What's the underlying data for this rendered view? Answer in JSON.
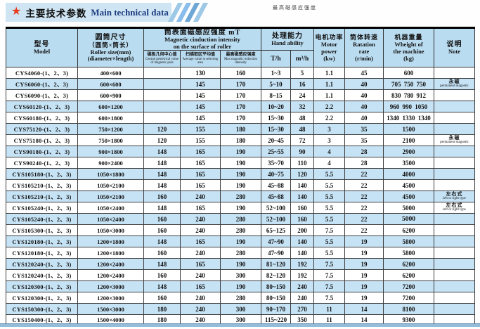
{
  "title": {
    "star": "★",
    "cn": "主要技术参数",
    "en": "Main technical data"
  },
  "top_caption": "最高磁感应强度",
  "colors": {
    "row_alt_blue": "#c6e3f5",
    "header_blue": "#badcf0",
    "title_bar_blue": "#cfe5f3",
    "title_navy": "#1b3a80",
    "star_red": "#e8391d"
  },
  "table": {
    "header": {
      "model": {
        "cn": "型号",
        "en": "Model"
      },
      "size": {
        "cn1": "圆筒尺寸",
        "cn2": "（圆筒×筒长）",
        "en1": "Roller size(mm)",
        "en2": "(diameter×length)"
      },
      "magnetic": {
        "cn": "筒表面磁感应强度 mT",
        "en1": "Magnetic cinduction intensity",
        "en2": "on the surface of roller",
        "subs": [
          {
            "cn": "磁极几何中心值",
            "en": "Central gemetrical value of magnetic pole"
          },
          {
            "cn": "扫描取区平均值",
            "en": "Average value in selecting area"
          },
          {
            "cn": "最高磁感应强度",
            "en": "Max magnetic induction intensity"
          }
        ]
      },
      "hand": {
        "cn": "处理能力",
        "en": "Hand ability",
        "th": "T/h",
        "m3h": "m³/h"
      },
      "motor": {
        "cn": "电机功率",
        "en1": "Motor",
        "en2": "power",
        "unit": "(kw)"
      },
      "rate": {
        "cn": "筒体转速",
        "en1": "Ratation",
        "en2": "rate",
        "unit": "(r/min)"
      },
      "weight": {
        "cn": "机器重量",
        "en1": "Wheight of",
        "en2": "the machine",
        "unit": "(kg)"
      },
      "note": {
        "cn": "说明",
        "en": "Note"
      }
    },
    "rows": [
      {
        "model": "CYS4060-(1、2、3)",
        "size": "400×600",
        "central": "",
        "avg": "130",
        "max": "160",
        "th": "1~3",
        "m3h": "5",
        "motor": "1.1",
        "rate": "45",
        "weight": "600",
        "note_cn": "",
        "note_en": ""
      },
      {
        "model": "CYS6060-(1、2、3)",
        "size": "600×600",
        "central": "",
        "avg": "145",
        "max": "170",
        "th": "5~10",
        "m3h": "16",
        "motor": "1.1",
        "rate": "40",
        "weight": "705 750 750",
        "note_cn": "永磁",
        "note_en": "permanent magnetic"
      },
      {
        "model": "CYS6090-(1、2、3)",
        "size": "600×900",
        "central": "",
        "avg": "145",
        "max": "170",
        "th": "8~15",
        "m3h": "24",
        "motor": "1.1",
        "rate": "40",
        "weight": "830 780 912",
        "note_cn": "",
        "note_en": ""
      },
      {
        "model": "CYS60120-(1、2、3)",
        "size": "600×1200",
        "central": "",
        "avg": "145",
        "max": "170",
        "th": "10~20",
        "m3h": "32",
        "motor": "2.2",
        "rate": "40",
        "weight": "960 990 1050",
        "note_cn": "",
        "note_en": ""
      },
      {
        "model": "CYS60180-(1、2、3)",
        "size": "600×1800",
        "central": "",
        "avg": "145",
        "max": "170",
        "th": "15~30",
        "m3h": "48",
        "motor": "2.2",
        "rate": "40",
        "weight": "1340 1330 1340",
        "note_cn": "",
        "note_en": ""
      },
      {
        "model": "CYS75120-(1、2、3)",
        "size": "750×1200",
        "central": "120",
        "avg": "155",
        "max": "180",
        "th": "15~30",
        "m3h": "48",
        "motor": "3",
        "rate": "35",
        "weight": "1500",
        "note_cn": "",
        "note_en": ""
      },
      {
        "model": "CYS75180-(1、2、3)",
        "size": "750×1800",
        "central": "120",
        "avg": "155",
        "max": "180",
        "th": "20~45",
        "m3h": "72",
        "motor": "3",
        "rate": "35",
        "weight": "2100",
        "note_cn": "永磁",
        "note_en": "permanent magnetic"
      },
      {
        "model": "CYS90180-(1、2、3)",
        "size": "900×1800",
        "central": "148",
        "avg": "165",
        "max": "190",
        "th": "25~55",
        "m3h": "90",
        "motor": "4",
        "rate": "28",
        "weight": "2900",
        "note_cn": "",
        "note_en": ""
      },
      {
        "model": "CYS90240-(1、2、3)",
        "size": "900×2400",
        "central": "148",
        "avg": "165",
        "max": "190",
        "th": "35~70",
        "m3h": "110",
        "motor": "4",
        "rate": "28",
        "weight": "3500",
        "note_cn": "",
        "note_en": ""
      },
      {
        "model": "CYS105180-(1、2、3)",
        "size": "1050×1800",
        "central": "148",
        "avg": "165",
        "max": "190",
        "th": "40~75",
        "m3h": "120",
        "motor": "5.5",
        "rate": "22",
        "weight": "4000",
        "note_cn": "",
        "note_en": ""
      },
      {
        "model": "CYS105210-(1、2、3)",
        "size": "1050×2100",
        "central": "148",
        "avg": "165",
        "max": "190",
        "th": "45~88",
        "m3h": "140",
        "motor": "5.5",
        "rate": "22",
        "weight": "4500",
        "note_cn": "",
        "note_en": ""
      },
      {
        "model": "CYS105210-(1、2、3)",
        "size": "1050×2100",
        "central": "160",
        "avg": "240",
        "max": "280",
        "th": "45~88",
        "m3h": "140",
        "motor": "5.5",
        "rate": "22",
        "weight": "4500",
        "note_cn": "左右式",
        "note_en": "left or right type"
      },
      {
        "model": "CYS105240-(1、2、3)",
        "size": "1050×2400",
        "central": "148",
        "avg": "165",
        "max": "190",
        "th": "52~100",
        "m3h": "160",
        "motor": "5.5",
        "rate": "22",
        "weight": "5000",
        "note_cn": "左右式",
        "note_en": "left or right type"
      },
      {
        "model": "CYS105240-(1、2、3)",
        "size": "1050×2400",
        "central": "160",
        "avg": "240",
        "max": "280",
        "th": "52~100",
        "m3h": "160",
        "motor": "5.5",
        "rate": "22",
        "weight": "5000",
        "weight_bold": true,
        "note_cn": "",
        "note_en": ""
      },
      {
        "model": "CYS105300-(1、2、3)",
        "size": "1050×3000",
        "central": "160",
        "avg": "240",
        "max": "280",
        "th": "65~125",
        "m3h": "200",
        "motor": "7.5",
        "rate": "22",
        "weight": "6200",
        "note_cn": "",
        "note_en": ""
      },
      {
        "model": "CYS120180-(1、2、3)",
        "size": "1200×1800",
        "central": "148",
        "avg": "165",
        "max": "190",
        "th": "47~90",
        "m3h": "140",
        "motor": "5.5",
        "rate": "19",
        "weight": "5800",
        "note_cn": "",
        "note_en": ""
      },
      {
        "model": "CYS120180-(1、2、3)",
        "size": "1200×1800",
        "central": "160",
        "avg": "240",
        "max": "280",
        "th": "47~90",
        "m3h": "140",
        "motor": "5.5",
        "rate": "19",
        "weight": "5800",
        "note_cn": "",
        "note_en": ""
      },
      {
        "model": "CYS120240-(1、2、3)",
        "size": "1200×2400",
        "central": "148",
        "avg": "165",
        "max": "190",
        "th": "81~120",
        "m3h": "192",
        "motor": "7.5",
        "rate": "19",
        "weight": "6200",
        "note_cn": "",
        "note_en": ""
      },
      {
        "model": "CYS120240-(1、2、3)",
        "size": "1200×2400",
        "central": "160",
        "avg": "240",
        "max": "300",
        "th": "82~120",
        "m3h": "192",
        "motor": "7.5",
        "rate": "19",
        "weight": "6200",
        "note_cn": "",
        "note_en": ""
      },
      {
        "model": "CYS120300-(1、2、3)",
        "size": "1200×3000",
        "central": "148",
        "avg": "165",
        "max": "190",
        "th": "80~150",
        "m3h": "240",
        "motor": "7.5",
        "rate": "19",
        "weight": "7200",
        "note_cn": "",
        "note_en": ""
      },
      {
        "model": "CYS120300-(1、2、3)",
        "size": "1200×3000",
        "central": "160",
        "avg": "240",
        "max": "280",
        "th": "80~150",
        "m3h": "240",
        "motor": "7.5",
        "rate": "19",
        "weight": "7200",
        "note_cn": "",
        "note_en": ""
      },
      {
        "model": "CYS150300-(1、2、3)",
        "size": "1500×3000",
        "central": "180",
        "avg": "240",
        "max": "300",
        "th": "90~170",
        "m3h": "270",
        "motor": "11",
        "rate": "14",
        "weight": "8100",
        "note_cn": "",
        "note_en": ""
      },
      {
        "model": "CYS150400-(1、2、3)",
        "size": "1500×4000",
        "central": "180",
        "avg": "240",
        "max": "300",
        "th": "115~220",
        "m3h": "350",
        "motor": "11",
        "rate": "14",
        "weight": "9300",
        "note_cn": "",
        "note_en": ""
      }
    ]
  }
}
